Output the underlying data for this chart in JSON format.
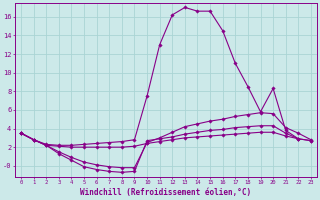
{
  "background_color": "#cce9e9",
  "grid_color": "#aad4d4",
  "line_color": "#880088",
  "marker_color": "#880088",
  "xlabel": "Windchill (Refroidissement éolien,°C)",
  "xlim": [
    -0.5,
    23.5
  ],
  "ylim": [
    -1.2,
    17.5
  ],
  "yticks": [
    0,
    2,
    4,
    6,
    8,
    10,
    12,
    14,
    16
  ],
  "ytick_labels": [
    "-0",
    "2",
    "4",
    "6",
    "8",
    "10",
    "12",
    "14",
    "16"
  ],
  "xticks": [
    0,
    1,
    2,
    3,
    4,
    5,
    6,
    7,
    8,
    9,
    10,
    11,
    12,
    13,
    14,
    15,
    16,
    17,
    18,
    19,
    20,
    21,
    22,
    23
  ],
  "series": [
    {
      "x": [
        0,
        1,
        2,
        3,
        4,
        5,
        6,
        7,
        8,
        9,
        10,
        11,
        12,
        13,
        14,
        15,
        16,
        17,
        18,
        19,
        20,
        21,
        22
      ],
      "y": [
        3.5,
        2.8,
        2.3,
        2.2,
        2.2,
        2.3,
        2.4,
        2.5,
        2.6,
        2.8,
        7.5,
        13.0,
        16.2,
        17.0,
        16.6,
        16.6,
        14.5,
        11.0,
        8.5,
        5.8,
        8.3,
        3.8,
        2.9
      ]
    },
    {
      "x": [
        0,
        1,
        2,
        3,
        4,
        5,
        6,
        7,
        8,
        9,
        10,
        11,
        12,
        13,
        14,
        15,
        16,
        17,
        18,
        19,
        20,
        21,
        22,
        23
      ],
      "y": [
        3.5,
        2.8,
        2.2,
        1.5,
        0.9,
        0.4,
        0.1,
        -0.1,
        -0.2,
        -0.2,
        2.5,
        3.0,
        3.6,
        4.2,
        4.5,
        4.8,
        5.0,
        5.3,
        5.5,
        5.7,
        5.6,
        4.1,
        3.5,
        2.8
      ]
    },
    {
      "x": [
        0,
        1,
        2,
        3,
        4,
        5,
        6,
        7,
        8,
        9,
        10,
        11,
        12,
        13,
        14,
        15,
        16,
        17,
        18,
        19,
        20,
        21,
        22,
        23
      ],
      "y": [
        3.5,
        2.8,
        2.2,
        1.3,
        0.6,
        -0.1,
        -0.4,
        -0.6,
        -0.7,
        -0.6,
        2.7,
        2.9,
        3.1,
        3.4,
        3.6,
        3.8,
        3.9,
        4.1,
        4.2,
        4.3,
        4.3,
        3.5,
        2.9,
        2.7
      ]
    },
    {
      "x": [
        0,
        1,
        2,
        3,
        4,
        5,
        6,
        7,
        8,
        9,
        10,
        11,
        12,
        13,
        14,
        15,
        16,
        17,
        18,
        19,
        20,
        21,
        22,
        23
      ],
      "y": [
        3.5,
        2.8,
        2.2,
        2.1,
        2.0,
        2.0,
        2.0,
        2.0,
        2.0,
        2.1,
        2.4,
        2.6,
        2.8,
        3.0,
        3.1,
        3.2,
        3.3,
        3.4,
        3.5,
        3.6,
        3.6,
        3.2,
        2.9,
        2.7
      ]
    }
  ]
}
